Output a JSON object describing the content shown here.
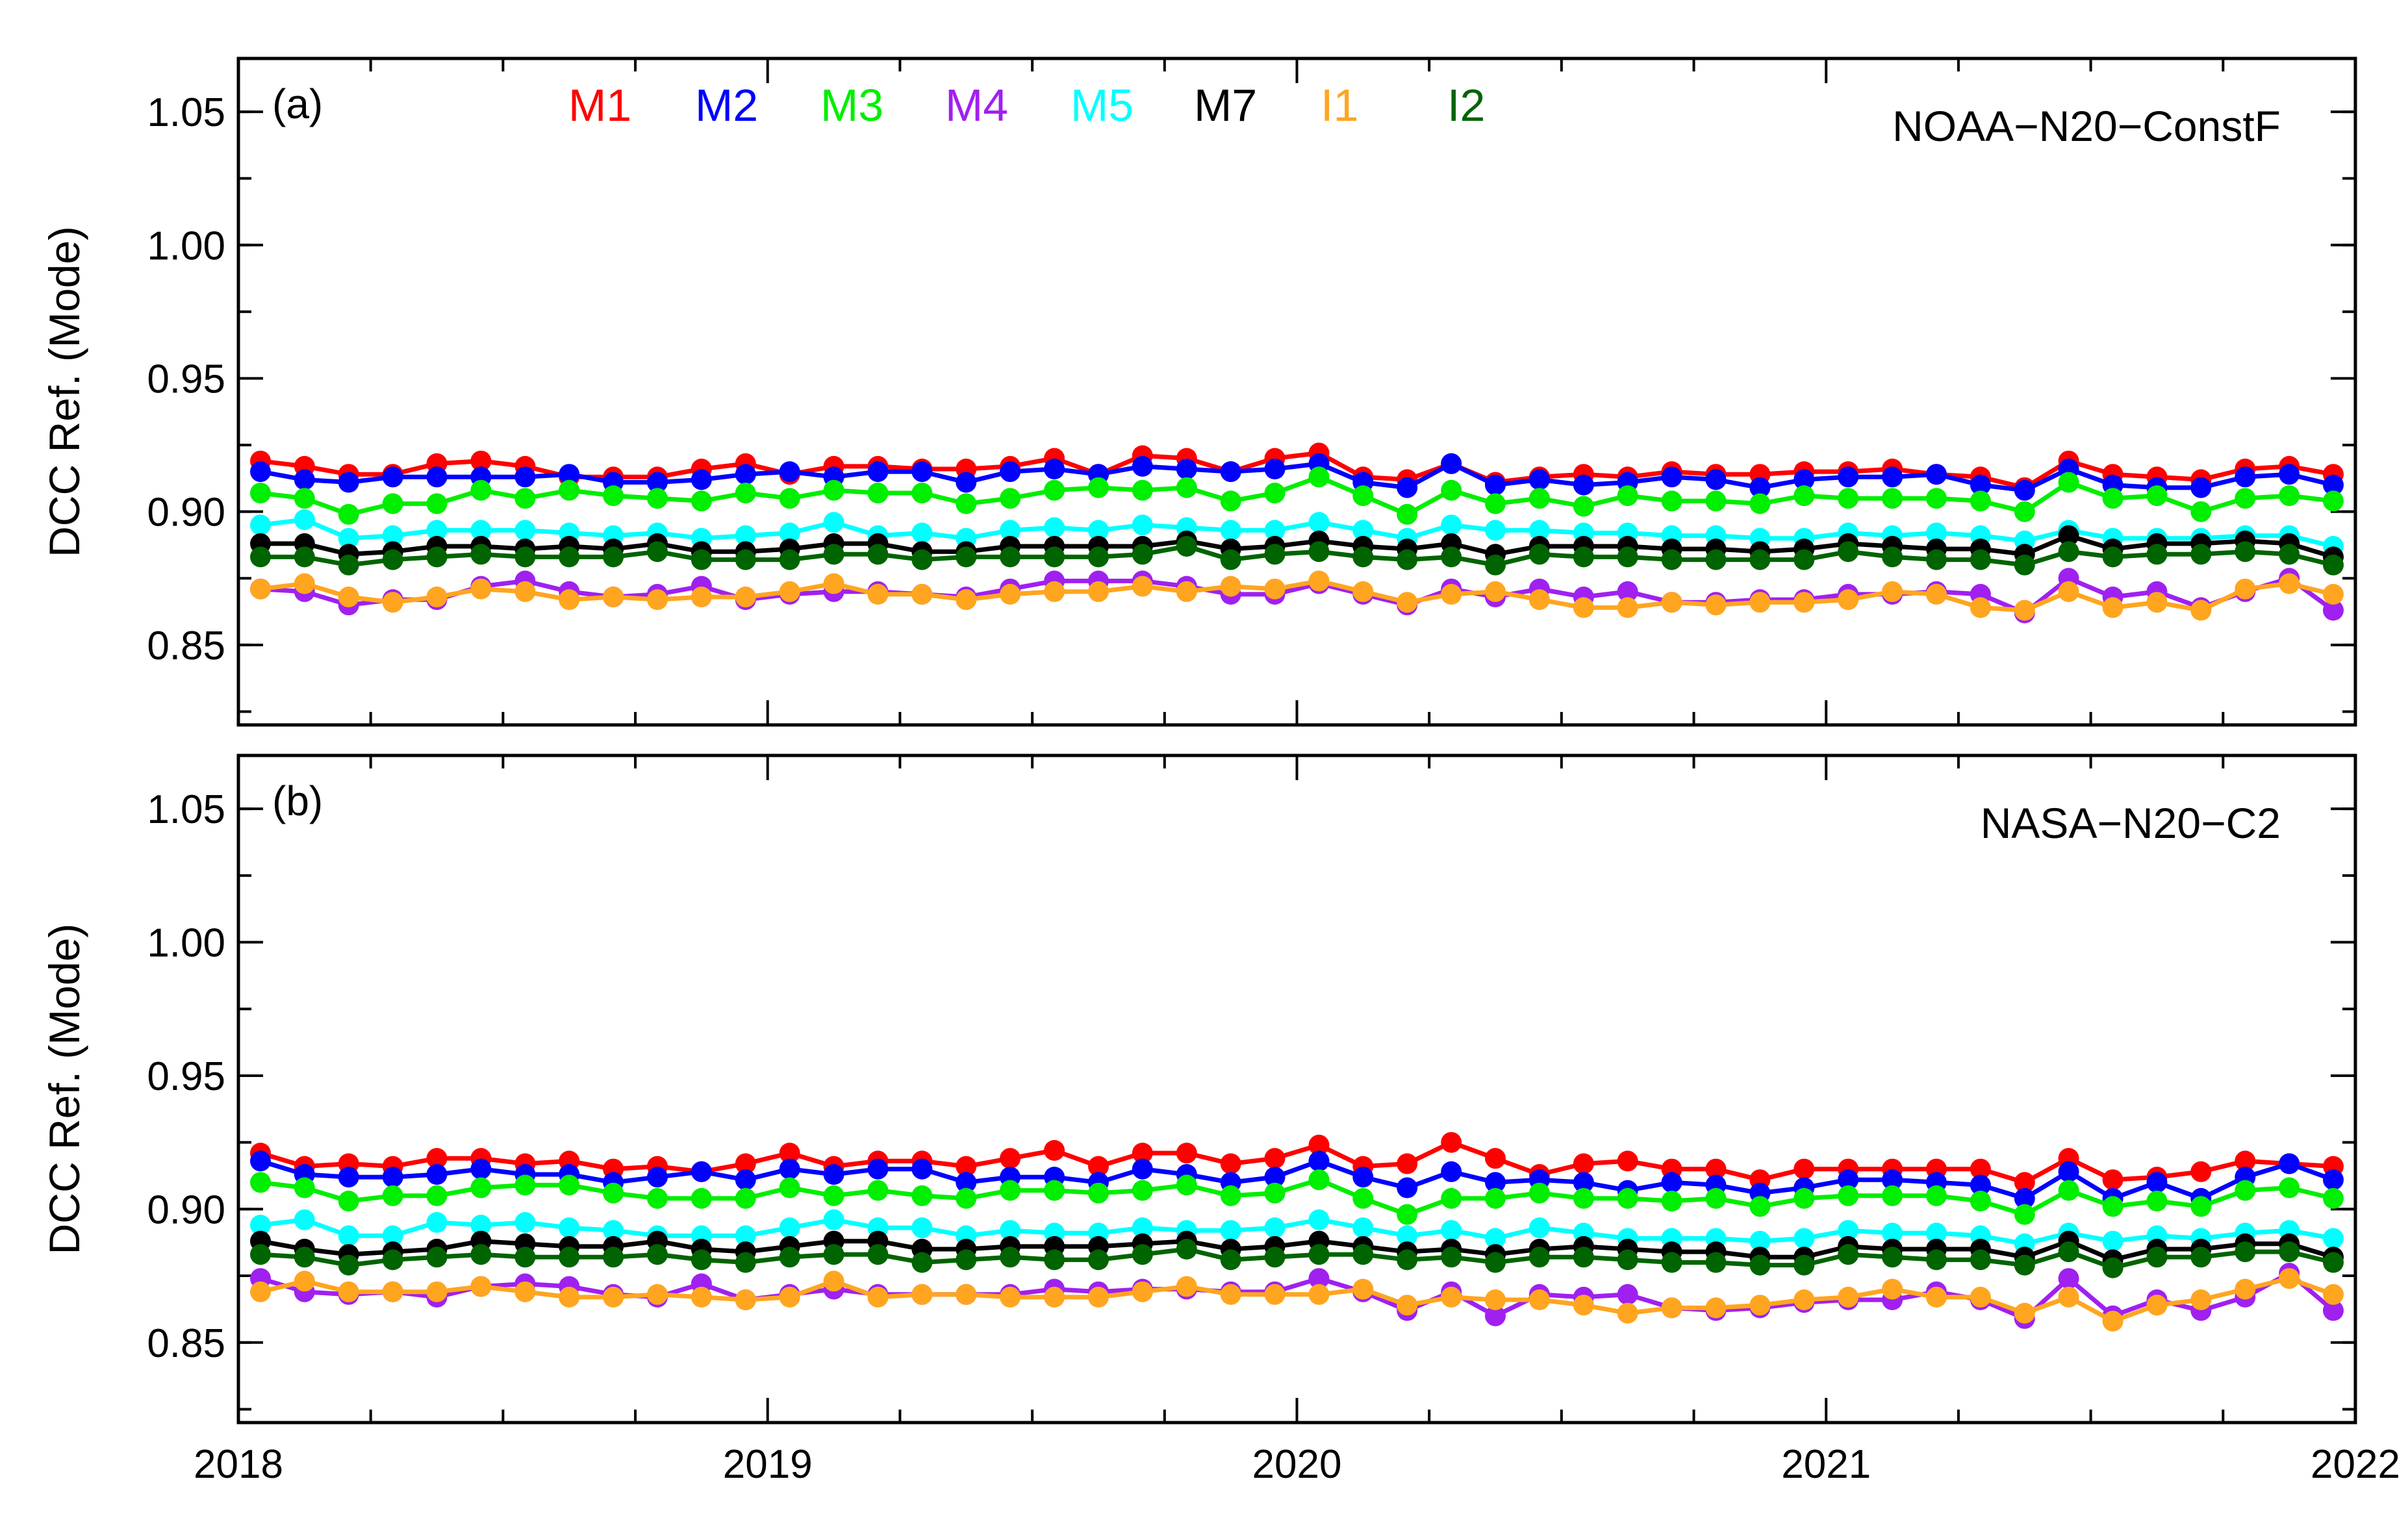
{
  "chart_data": [
    {
      "type": "line",
      "panel_label": "(a)",
      "title": "NOAA−N20−ConstF",
      "ylabel": "DCC Ref. (Mode)",
      "xlabel": "",
      "xlim": [
        2018.0,
        2022.0
      ],
      "ylim": [
        0.82,
        1.07
      ],
      "xticks": [
        2018,
        2019,
        2020,
        2021,
        2022
      ],
      "xtick_labels": [
        "2018",
        "2019",
        "2020",
        "2021",
        "2022"
      ],
      "yticks": [
        0.85,
        0.9,
        0.95,
        1.0,
        1.05
      ],
      "ytick_labels": [
        "0.85",
        "0.90",
        "0.95",
        "1.00",
        "1.05"
      ],
      "grid": false,
      "legend_position": "top",
      "x": [
        2018.0417,
        2018.125,
        2018.2083,
        2018.2917,
        2018.375,
        2018.4583,
        2018.5417,
        2018.625,
        2018.7083,
        2018.7917,
        2018.875,
        2018.9583,
        2019.0417,
        2019.125,
        2019.2083,
        2019.2917,
        2019.375,
        2019.4583,
        2019.5417,
        2019.625,
        2019.7083,
        2019.7917,
        2019.875,
        2019.9583,
        2020.0417,
        2020.125,
        2020.2083,
        2020.2917,
        2020.375,
        2020.4583,
        2020.5417,
        2020.625,
        2020.7083,
        2020.7917,
        2020.875,
        2020.9583,
        2021.0417,
        2021.125,
        2021.2083,
        2021.2917,
        2021.375,
        2021.4583,
        2021.5417,
        2021.625,
        2021.7083,
        2021.7917,
        2021.875,
        2021.9583
      ],
      "series": [
        {
          "name": "M1",
          "color": "#ff0000",
          "values": [
            0.919,
            0.917,
            0.914,
            0.914,
            0.918,
            0.919,
            0.917,
            0.913,
            0.913,
            0.913,
            0.916,
            0.918,
            0.914,
            0.917,
            0.917,
            0.916,
            0.916,
            0.917,
            0.92,
            0.914,
            0.921,
            0.92,
            0.915,
            0.92,
            0.922,
            0.913,
            0.912,
            0.918,
            0.911,
            0.913,
            0.914,
            0.913,
            0.915,
            0.914,
            0.914,
            0.915,
            0.915,
            0.916,
            0.914,
            0.913,
            0.909,
            0.919,
            0.914,
            0.913,
            0.912,
            0.916,
            0.917,
            0.914
          ]
        },
        {
          "name": "M2",
          "color": "#0000ff",
          "values": [
            0.915,
            0.912,
            0.911,
            0.913,
            0.913,
            0.913,
            0.913,
            0.914,
            0.911,
            0.911,
            0.912,
            0.914,
            0.915,
            0.913,
            0.915,
            0.915,
            0.911,
            0.915,
            0.916,
            0.914,
            0.917,
            0.916,
            0.915,
            0.916,
            0.918,
            0.911,
            0.909,
            0.918,
            0.91,
            0.912,
            0.91,
            0.911,
            0.913,
            0.912,
            0.909,
            0.912,
            0.913,
            0.913,
            0.914,
            0.91,
            0.908,
            0.916,
            0.91,
            0.909,
            0.909,
            0.913,
            0.914,
            0.91
          ]
        },
        {
          "name": "M3",
          "color": "#00ee00",
          "values": [
            0.907,
            0.905,
            0.899,
            0.903,
            0.903,
            0.908,
            0.905,
            0.908,
            0.906,
            0.905,
            0.904,
            0.907,
            0.905,
            0.908,
            0.907,
            0.907,
            0.903,
            0.905,
            0.908,
            0.909,
            0.908,
            0.909,
            0.904,
            0.907,
            0.913,
            0.906,
            0.899,
            0.908,
            0.903,
            0.905,
            0.902,
            0.906,
            0.904,
            0.904,
            0.903,
            0.906,
            0.905,
            0.905,
            0.905,
            0.904,
            0.9,
            0.911,
            0.905,
            0.906,
            0.9,
            0.905,
            0.906,
            0.904
          ]
        },
        {
          "name": "M4",
          "color": "#a020f0",
          "values": [
            0.871,
            0.87,
            0.865,
            0.867,
            0.867,
            0.872,
            0.874,
            0.87,
            0.868,
            0.869,
            0.872,
            0.867,
            0.869,
            0.87,
            0.87,
            0.869,
            0.868,
            0.871,
            0.874,
            0.874,
            0.874,
            0.872,
            0.869,
            0.869,
            0.873,
            0.869,
            0.865,
            0.871,
            0.868,
            0.871,
            0.868,
            0.87,
            0.866,
            0.866,
            0.867,
            0.867,
            0.869,
            0.869,
            0.87,
            0.869,
            0.862,
            0.875,
            0.868,
            0.87,
            0.864,
            0.87,
            0.875,
            0.863
          ]
        },
        {
          "name": "M5",
          "color": "#00ffff",
          "values": [
            0.895,
            0.897,
            0.89,
            0.891,
            0.893,
            0.893,
            0.893,
            0.892,
            0.891,
            0.892,
            0.89,
            0.891,
            0.892,
            0.896,
            0.891,
            0.892,
            0.89,
            0.893,
            0.894,
            0.893,
            0.895,
            0.894,
            0.893,
            0.893,
            0.896,
            0.893,
            0.89,
            0.895,
            0.893,
            0.893,
            0.892,
            0.892,
            0.891,
            0.891,
            0.89,
            0.89,
            0.892,
            0.891,
            0.892,
            0.891,
            0.889,
            0.893,
            0.89,
            0.89,
            0.89,
            0.891,
            0.891,
            0.887
          ]
        },
        {
          "name": "M7",
          "color": "#000000",
          "values": [
            0.888,
            0.888,
            0.884,
            0.885,
            0.887,
            0.887,
            0.886,
            0.887,
            0.886,
            0.888,
            0.885,
            0.885,
            0.886,
            0.888,
            0.888,
            0.885,
            0.885,
            0.887,
            0.887,
            0.887,
            0.887,
            0.889,
            0.886,
            0.887,
            0.889,
            0.887,
            0.886,
            0.888,
            0.884,
            0.887,
            0.887,
            0.887,
            0.886,
            0.886,
            0.885,
            0.886,
            0.888,
            0.887,
            0.886,
            0.886,
            0.884,
            0.891,
            0.886,
            0.888,
            0.888,
            0.889,
            0.888,
            0.883
          ]
        },
        {
          "name": "I1",
          "color": "#ffa520",
          "values": [
            0.871,
            0.873,
            0.868,
            0.866,
            0.868,
            0.871,
            0.87,
            0.867,
            0.868,
            0.867,
            0.868,
            0.868,
            0.87,
            0.873,
            0.869,
            0.869,
            0.867,
            0.869,
            0.87,
            0.87,
            0.872,
            0.87,
            0.872,
            0.871,
            0.874,
            0.87,
            0.866,
            0.869,
            0.87,
            0.867,
            0.864,
            0.864,
            0.866,
            0.865,
            0.866,
            0.866,
            0.867,
            0.87,
            0.869,
            0.864,
            0.863,
            0.87,
            0.864,
            0.866,
            0.863,
            0.871,
            0.873,
            0.869
          ]
        },
        {
          "name": "I2",
          "color": "#006400",
          "values": [
            0.883,
            0.883,
            0.88,
            0.882,
            0.883,
            0.884,
            0.883,
            0.883,
            0.883,
            0.885,
            0.882,
            0.882,
            0.882,
            0.884,
            0.884,
            0.882,
            0.883,
            0.883,
            0.883,
            0.883,
            0.884,
            0.887,
            0.882,
            0.884,
            0.885,
            0.883,
            0.882,
            0.883,
            0.88,
            0.884,
            0.883,
            0.883,
            0.882,
            0.882,
            0.882,
            0.882,
            0.885,
            0.883,
            0.882,
            0.882,
            0.88,
            0.885,
            0.883,
            0.884,
            0.884,
            0.885,
            0.884,
            0.88
          ]
        }
      ]
    },
    {
      "type": "line",
      "panel_label": "(b)",
      "title": "NASA−N20−C2",
      "ylabel": "DCC Ref. (Mode)",
      "xlabel": "",
      "xlim": [
        2018.0,
        2022.0
      ],
      "ylim": [
        0.82,
        1.07
      ],
      "xticks": [
        2018,
        2019,
        2020,
        2021,
        2022
      ],
      "xtick_labels": [
        "2018",
        "2019",
        "2020",
        "2021",
        "2022"
      ],
      "yticks": [
        0.85,
        0.9,
        0.95,
        1.0,
        1.05
      ],
      "ytick_labels": [
        "0.85",
        "0.90",
        "0.95",
        "1.00",
        "1.05"
      ],
      "grid": false,
      "x": [
        2018.0417,
        2018.125,
        2018.2083,
        2018.2917,
        2018.375,
        2018.4583,
        2018.5417,
        2018.625,
        2018.7083,
        2018.7917,
        2018.875,
        2018.9583,
        2019.0417,
        2019.125,
        2019.2083,
        2019.2917,
        2019.375,
        2019.4583,
        2019.5417,
        2019.625,
        2019.7083,
        2019.7917,
        2019.875,
        2019.9583,
        2020.0417,
        2020.125,
        2020.2083,
        2020.2917,
        2020.375,
        2020.4583,
        2020.5417,
        2020.625,
        2020.7083,
        2020.7917,
        2020.875,
        2020.9583,
        2021.0417,
        2021.125,
        2021.2083,
        2021.2917,
        2021.375,
        2021.4583,
        2021.5417,
        2021.625,
        2021.7083,
        2021.7917,
        2021.875,
        2021.9583
      ],
      "series": [
        {
          "name": "M1",
          "color": "#ff0000",
          "values": [
            0.921,
            0.916,
            0.917,
            0.916,
            0.919,
            0.919,
            0.917,
            0.918,
            0.915,
            0.916,
            0.914,
            0.917,
            0.921,
            0.916,
            0.918,
            0.918,
            0.916,
            0.919,
            0.922,
            0.916,
            0.921,
            0.921,
            0.917,
            0.919,
            0.924,
            0.916,
            0.917,
            0.925,
            0.919,
            0.913,
            0.917,
            0.918,
            0.915,
            0.915,
            0.911,
            0.915,
            0.915,
            0.915,
            0.915,
            0.915,
            0.91,
            0.919,
            0.911,
            0.912,
            0.914,
            0.918,
            0.917,
            0.916
          ]
        },
        {
          "name": "M2",
          "color": "#0000ff",
          "values": [
            0.918,
            0.913,
            0.912,
            0.912,
            0.913,
            0.915,
            0.913,
            0.913,
            0.91,
            0.912,
            0.914,
            0.911,
            0.915,
            0.913,
            0.915,
            0.915,
            0.91,
            0.912,
            0.912,
            0.91,
            0.915,
            0.913,
            0.91,
            0.912,
            0.918,
            0.912,
            0.908,
            0.914,
            0.91,
            0.911,
            0.91,
            0.907,
            0.91,
            0.909,
            0.906,
            0.908,
            0.911,
            0.911,
            0.91,
            0.909,
            0.904,
            0.914,
            0.904,
            0.91,
            0.904,
            0.912,
            0.917,
            0.911
          ]
        },
        {
          "name": "M3",
          "color": "#00ee00",
          "values": [
            0.91,
            0.908,
            0.903,
            0.905,
            0.905,
            0.908,
            0.909,
            0.909,
            0.906,
            0.904,
            0.904,
            0.904,
            0.908,
            0.905,
            0.907,
            0.905,
            0.904,
            0.907,
            0.907,
            0.906,
            0.907,
            0.909,
            0.905,
            0.906,
            0.911,
            0.904,
            0.898,
            0.904,
            0.904,
            0.906,
            0.904,
            0.904,
            0.903,
            0.904,
            0.901,
            0.904,
            0.905,
            0.905,
            0.905,
            0.903,
            0.898,
            0.907,
            0.901,
            0.903,
            0.901,
            0.907,
            0.908,
            0.904
          ]
        },
        {
          "name": "M4",
          "color": "#a020f0",
          "values": [
            0.874,
            0.869,
            0.868,
            0.869,
            0.867,
            0.871,
            0.872,
            0.871,
            0.868,
            0.867,
            0.872,
            0.866,
            0.868,
            0.87,
            0.868,
            0.868,
            0.868,
            0.868,
            0.87,
            0.869,
            0.87,
            0.87,
            0.869,
            0.869,
            0.874,
            0.869,
            0.862,
            0.869,
            0.86,
            0.868,
            0.867,
            0.868,
            0.863,
            0.862,
            0.863,
            0.865,
            0.866,
            0.866,
            0.869,
            0.866,
            0.859,
            0.874,
            0.86,
            0.866,
            0.862,
            0.867,
            0.876,
            0.862
          ]
        },
        {
          "name": "M5",
          "color": "#00ffff",
          "values": [
            0.894,
            0.896,
            0.89,
            0.89,
            0.895,
            0.894,
            0.895,
            0.893,
            0.892,
            0.89,
            0.89,
            0.89,
            0.893,
            0.896,
            0.893,
            0.893,
            0.89,
            0.892,
            0.891,
            0.891,
            0.893,
            0.892,
            0.892,
            0.893,
            0.896,
            0.893,
            0.89,
            0.892,
            0.889,
            0.893,
            0.891,
            0.889,
            0.889,
            0.889,
            0.888,
            0.889,
            0.892,
            0.891,
            0.891,
            0.89,
            0.887,
            0.891,
            0.888,
            0.89,
            0.889,
            0.891,
            0.892,
            0.889
          ]
        },
        {
          "name": "M7",
          "color": "#000000",
          "values": [
            0.888,
            0.885,
            0.883,
            0.884,
            0.885,
            0.888,
            0.887,
            0.886,
            0.886,
            0.888,
            0.885,
            0.884,
            0.886,
            0.888,
            0.888,
            0.885,
            0.885,
            0.886,
            0.886,
            0.886,
            0.887,
            0.888,
            0.885,
            0.886,
            0.888,
            0.886,
            0.884,
            0.885,
            0.883,
            0.885,
            0.886,
            0.885,
            0.884,
            0.884,
            0.882,
            0.882,
            0.886,
            0.885,
            0.885,
            0.885,
            0.882,
            0.888,
            0.881,
            0.885,
            0.885,
            0.887,
            0.887,
            0.882
          ]
        },
        {
          "name": "I1",
          "color": "#ffa520",
          "values": [
            0.869,
            0.873,
            0.869,
            0.869,
            0.869,
            0.871,
            0.869,
            0.867,
            0.867,
            0.868,
            0.867,
            0.866,
            0.867,
            0.873,
            0.867,
            0.868,
            0.868,
            0.867,
            0.867,
            0.867,
            0.869,
            0.871,
            0.868,
            0.868,
            0.868,
            0.87,
            0.864,
            0.867,
            0.866,
            0.866,
            0.864,
            0.861,
            0.863,
            0.863,
            0.864,
            0.866,
            0.867,
            0.87,
            0.867,
            0.867,
            0.861,
            0.867,
            0.858,
            0.864,
            0.866,
            0.87,
            0.874,
            0.868
          ]
        },
        {
          "name": "I2",
          "color": "#006400",
          "values": [
            0.883,
            0.882,
            0.879,
            0.881,
            0.882,
            0.883,
            0.882,
            0.882,
            0.882,
            0.883,
            0.881,
            0.88,
            0.882,
            0.883,
            0.883,
            0.88,
            0.881,
            0.882,
            0.881,
            0.881,
            0.883,
            0.885,
            0.881,
            0.882,
            0.883,
            0.883,
            0.881,
            0.882,
            0.88,
            0.882,
            0.882,
            0.881,
            0.88,
            0.88,
            0.879,
            0.879,
            0.883,
            0.882,
            0.881,
            0.881,
            0.879,
            0.884,
            0.878,
            0.882,
            0.882,
            0.884,
            0.884,
            0.88
          ]
        }
      ]
    }
  ]
}
